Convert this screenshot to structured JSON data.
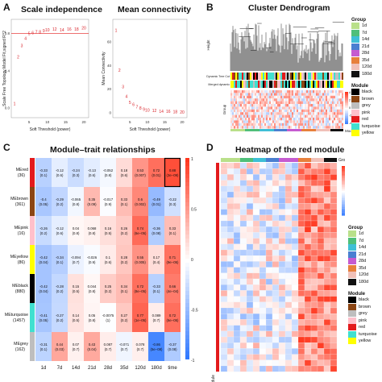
{
  "panel_labels": {
    "a": "A",
    "b": "B",
    "c": "C",
    "d": "D"
  },
  "panelA": {
    "title_left": "Scale independence",
    "title_right": "Mean connectivity",
    "ylabel_left": "Scale Free Topology Model Fit,signed R^2",
    "ylabel_right": "Mean Connectivity",
    "xlabel": "Soft Threshold (power)",
    "x_ticks": [
      "5",
      "10",
      "15",
      "20"
    ],
    "y_ticks_left": [
      "0.8",
      "0.4",
      "0.0"
    ],
    "y_ticks_right": [
      "0",
      "20",
      "40",
      "60"
    ],
    "left_points": [
      {
        "p": 1,
        "v": 0.05
      },
      {
        "p": 2,
        "v": 0.55
      },
      {
        "p": 3,
        "v": 0.67
      },
      {
        "p": 4,
        "v": 0.75
      },
      {
        "p": 5,
        "v": 0.8
      },
      {
        "p": 6,
        "v": 0.81
      },
      {
        "p": 7,
        "v": 0.82
      },
      {
        "p": 8,
        "v": 0.82
      },
      {
        "p": 9,
        "v": 0.83
      },
      {
        "p": 10,
        "v": 0.84
      },
      {
        "p": 12,
        "v": 0.85
      },
      {
        "p": 14,
        "v": 0.84
      },
      {
        "p": 16,
        "v": 0.85
      },
      {
        "p": 18,
        "v": 0.85
      },
      {
        "p": 20,
        "v": 0.86
      }
    ],
    "right_points": [
      {
        "p": 1,
        "v": 70
      },
      {
        "p": 2,
        "v": 36
      },
      {
        "p": 3,
        "v": 22
      },
      {
        "p": 4,
        "v": 14
      },
      {
        "p": 5,
        "v": 9
      },
      {
        "p": 6,
        "v": 7
      },
      {
        "p": 7,
        "v": 5
      },
      {
        "p": 8,
        "v": 4
      },
      {
        "p": 9,
        "v": 3
      },
      {
        "p": 10,
        "v": 2.5
      },
      {
        "p": 12,
        "v": 2
      },
      {
        "p": 14,
        "v": 1.5
      },
      {
        "p": 16,
        "v": 1.2
      },
      {
        "p": 18,
        "v": 1
      },
      {
        "p": 20,
        "v": 0.8
      }
    ],
    "threshold_line": 0.8,
    "point_color": "#d9232a"
  },
  "panelB": {
    "title": "Cluster Dendrogram",
    "ylabel": "Height",
    "row_labels": [
      "Dynamic Tree Cut",
      "Merged dynamic"
    ],
    "side_labels": {
      "group": "Group",
      "module": "Module"
    },
    "group_legend_title": "Group",
    "group_legend": [
      {
        "label": "1d",
        "color": "#b9e08a"
      },
      {
        "label": "7d",
        "color": "#4fbf7a"
      },
      {
        "label": "14d",
        "color": "#3fbfd6"
      },
      {
        "label": "21d",
        "color": "#4a7fd1"
      },
      {
        "label": "28d",
        "color": "#c55bd0"
      },
      {
        "label": "35d",
        "color": "#e7803b"
      },
      {
        "label": "120d",
        "color": "#f0c0b8"
      },
      {
        "label": "180d",
        "color": "#111111"
      }
    ],
    "module_legend_title": "Module",
    "module_legend": [
      {
        "label": "black",
        "color": "#000000"
      },
      {
        "label": "brown",
        "color": "#8b4513"
      },
      {
        "label": "grey",
        "color": "#bebebe"
      },
      {
        "label": "pink",
        "color": "#ffc0cb"
      },
      {
        "label": "red",
        "color": "#e31a1c"
      },
      {
        "label": "turquoise",
        "color": "#40e0d0"
      },
      {
        "label": "yellow",
        "color": "#ffff00"
      }
    ],
    "scale_ticks": [
      "4",
      "2",
      "0",
      "-2",
      "-4"
    ]
  },
  "panelC": {
    "title": "Module–trait relationships",
    "columns": [
      "1d",
      "7d",
      "14d",
      "21d",
      "28d",
      "35d",
      "120d",
      "180d",
      "time"
    ],
    "rows": [
      {
        "name": "MEred",
        "count": "(36)",
        "color": "#e31a1c",
        "cells": [
          [
            "-0.33",
            "(0.1)",
            -0.33
          ],
          [
            "-0.12",
            "(0.6)",
            -0.12
          ],
          [
            "-0.24",
            "(0.3)",
            -0.24
          ],
          [
            "-0.13",
            "(0.6)",
            -0.13
          ],
          [
            "-0.052",
            "(0.8)",
            -0.05
          ],
          [
            "0.18",
            "(0.6)",
            0.18
          ],
          [
            "0.53",
            "(0.007)",
            0.53
          ],
          [
            "0.72",
            "(0.01)",
            0.72
          ],
          [
            "0.88",
            "(3e−09)",
            0.88
          ]
        ]
      },
      {
        "name": "MEbrown",
        "count": "(361)",
        "color": "#8b4513",
        "cells": [
          [
            "-0.4",
            "(0.05)",
            -0.4
          ],
          [
            "-0.29",
            "(0.2)",
            -0.29
          ],
          [
            "-0.065",
            "(0.8)",
            -0.06
          ],
          [
            "0.35",
            "(0.09)",
            0.35
          ],
          [
            "-0.017",
            "(0.9)",
            -0.02
          ],
          [
            "0.33",
            "(0.1)",
            0.33
          ],
          [
            "0.6",
            "(0.002)",
            0.6
          ],
          [
            "-0.49",
            "(0.01)",
            -0.49
          ],
          [
            "-0.22",
            "(0.3)",
            -0.22
          ]
        ]
      },
      {
        "name": "MEpink",
        "count": "(16)",
        "color": "#ffc0cb",
        "cells": [
          [
            "-0.26",
            "(0.2)",
            -0.26
          ],
          [
            "-0.12",
            "(0.6)",
            -0.12
          ],
          [
            "0.04",
            "(0.8)",
            0.04
          ],
          [
            "0.068",
            "(0.8)",
            0.07
          ],
          [
            "0.16",
            "(0.5)",
            0.16
          ],
          [
            "0.26",
            "(0.2)",
            0.26
          ],
          [
            "0.74",
            "(6e−05)",
            0.74
          ],
          [
            "-0.36",
            "(0.08)",
            -0.36
          ],
          [
            "0.33",
            "(0.1)",
            0.33
          ]
        ]
      },
      {
        "name": "MEyellow",
        "count": "(86)",
        "color": "#ffff00",
        "cells": [
          [
            "-0.42",
            "(0.04)",
            -0.42
          ],
          [
            "-0.34",
            "(0.1)",
            -0.34
          ],
          [
            "-0.094",
            "(0.7)",
            -0.09
          ],
          [
            "-0.026",
            "(0.9)",
            -0.03
          ],
          [
            "0.1",
            "(0.6)",
            0.1
          ],
          [
            "0.28",
            "(0.2)",
            0.28
          ],
          [
            "0.55",
            "(0.005)",
            0.55
          ],
          [
            "0.17",
            "(0.4)",
            0.17
          ],
          [
            "0.71",
            "(9e−05)",
            0.71
          ]
        ]
      },
      {
        "name": "MEblack",
        "count": "(880)",
        "color": "#000000",
        "cells": [
          [
            "-0.42",
            "(0.04)",
            -0.42
          ],
          [
            "-0.28",
            "(0.2)",
            -0.28
          ],
          [
            "0.15",
            "(0.5)",
            0.15
          ],
          [
            "0.044",
            "(0.8)",
            0.04
          ],
          [
            "0.25",
            "(0.2)",
            0.25
          ],
          [
            "0.34",
            "(0.1)",
            0.34
          ],
          [
            "0.72",
            "(8e−05)",
            0.72
          ],
          [
            "-0.33",
            "(0.1)",
            -0.33
          ],
          [
            "0.66",
            "(4e−04)",
            0.66
          ]
        ]
      },
      {
        "name": "MEturquoise",
        "count": "(1457)",
        "color": "#40e0d0",
        "cells": [
          [
            "-0.41",
            "(0.05)",
            -0.41
          ],
          [
            "-0.27",
            "(0.2)",
            -0.27
          ],
          [
            "0.14",
            "(0.5)",
            0.14
          ],
          [
            "0.05",
            "(0.8)",
            0.05
          ],
          [
            "-0.0075",
            "(1)",
            -0.01
          ],
          [
            "0.27",
            "(0.2)",
            0.27
          ],
          [
            "0.77",
            "(1e−05)",
            0.77
          ],
          [
            "0.089",
            "(0.7)",
            0.09
          ],
          [
            "0.72",
            "(6e−05)",
            0.72
          ]
        ]
      },
      {
        "name": "MEgrey",
        "count": "(162)",
        "color": "#bebebe",
        "cells": [
          [
            "-0.31",
            "(0.1)",
            -0.31
          ],
          [
            "0.44",
            "(0.03)",
            0.44
          ],
          [
            "0.07",
            "(0.7)",
            0.07
          ],
          [
            "0.43",
            "(0.04)",
            0.43
          ],
          [
            "0.087",
            "(0.7)",
            0.09
          ],
          [
            "-0.071",
            "(0.7)",
            -0.07
          ],
          [
            "0.078",
            "(0.7)",
            0.08
          ],
          [
            "-0.86",
            "(5e−08)",
            -0.86
          ],
          [
            "-0.37",
            "(0.08)",
            -0.37
          ]
        ]
      }
    ],
    "scale_ticks": [
      "1",
      "0.5",
      "0",
      "-0.5",
      "-1"
    ]
  },
  "panelD": {
    "title": "Heatmap of the red module",
    "top_label": "Group",
    "side_label": "Module",
    "scale_ticks": [
      "3",
      "2",
      "1",
      "0",
      "-1",
      "-2",
      "-3"
    ],
    "group_legend_title": "Group",
    "group_legend": [
      {
        "label": "1d",
        "color": "#b9e08a"
      },
      {
        "label": "7d",
        "color": "#4fbf7a"
      },
      {
        "label": "14d",
        "color": "#3fbfd6"
      },
      {
        "label": "21d",
        "color": "#4a7fd1"
      },
      {
        "label": "28d",
        "color": "#c55bd0"
      },
      {
        "label": "35d",
        "color": "#e7803b"
      },
      {
        "label": "120d",
        "color": "#f0c0b8"
      },
      {
        "label": "180d",
        "color": "#111111"
      }
    ],
    "module_legend_title": "Module",
    "module_legend": [
      {
        "label": "black",
        "color": "#000000"
      },
      {
        "label": "brown",
        "color": "#8b4513"
      },
      {
        "label": "grey",
        "color": "#bebebe"
      },
      {
        "label": "pink",
        "color": "#ffc0cb"
      },
      {
        "label": "red",
        "color": "#e31a1c"
      },
      {
        "label": "turquoise",
        "color": "#40e0d0"
      },
      {
        "label": "yellow",
        "color": "#ffff00"
      }
    ]
  }
}
